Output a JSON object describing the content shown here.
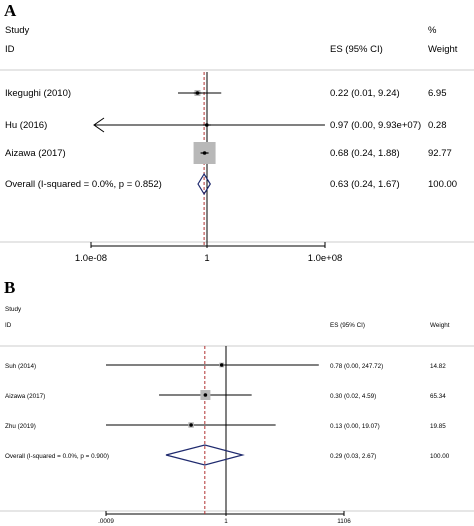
{
  "panels": [
    {
      "letter": "A",
      "header": {
        "study": "Study",
        "id": "ID",
        "es": "ES (95% CI)",
        "pct": "%",
        "weight": "Weight"
      },
      "rows": [
        {
          "study": "Ikegughi (2010)",
          "es_text": "0.22 (0.01, 9.24)",
          "weight_text": "6.95"
        },
        {
          "study": "Hu (2016)",
          "es_text": "0.97 (0.00, 9.93e+07)",
          "weight_text": "0.28"
        },
        {
          "study": "Aizawa (2017)",
          "es_text": "0.68 (0.24, 1.88)",
          "weight_text": "92.77"
        },
        {
          "study": "Overall  (I-squared = 0.0%, p = 0.852)",
          "es_text": "0.63 (0.24, 1.67)",
          "weight_text": "100.00"
        }
      ],
      "ticks": [
        "1.0e-08",
        "1",
        "1.0e+08"
      ]
    },
    {
      "letter": "B",
      "header": {
        "study": "Study",
        "id": "ID",
        "es": "ES (95% CI)",
        "pct": "",
        "weight": "Weight"
      },
      "rows": [
        {
          "study": "Suh (2014)",
          "es_text": "0.78 (0.00, 247.72)",
          "weight_text": "14.82"
        },
        {
          "study": "Aizawa (2017)",
          "es_text": "0.30 (0.02, 4.59)",
          "weight_text": "65.34"
        },
        {
          "study": "Zhu (2019)",
          "es_text": "0.13 (0.00, 19.07)",
          "weight_text": "19.85"
        },
        {
          "study": "Overall  (I-squared = 0.0%, p = 0.900)",
          "es_text": "0.29 (0.03, 2.67)",
          "weight_text": "100.00"
        }
      ],
      "ticks": [
        ".0009",
        "1",
        "1106"
      ]
    }
  ],
  "chart_data": [
    {
      "type": "forest",
      "xscale": "log",
      "xlim": [
        1e-10,
        10000000000.0
      ],
      "null_line": 1,
      "reference_line": 0.63,
      "xticks": [
        1e-08,
        1,
        100000000.0
      ],
      "studies": [
        {
          "name": "Ikegughi (2010)",
          "es": 0.22,
          "lower": 0.01,
          "upper": 9.24,
          "weight": 6.95
        },
        {
          "name": "Hu (2016)",
          "es": 0.97,
          "lower": 0.0,
          "upper": 99300000.0,
          "weight": 0.28
        },
        {
          "name": "Aizawa (2017)",
          "es": 0.68,
          "lower": 0.24,
          "upper": 1.88,
          "weight": 92.77
        }
      ],
      "overall": {
        "es": 0.63,
        "lower": 0.24,
        "upper": 1.67,
        "weight": 100.0
      }
    },
    {
      "type": "forest",
      "xscale": "log",
      "xlim": [
        0.0009,
        1106
      ],
      "null_line": 1,
      "reference_line": 0.29,
      "xticks": [
        0.0009,
        1,
        1106
      ],
      "studies": [
        {
          "name": "Suh (2014)",
          "es": 0.78,
          "lower": 0.0,
          "upper": 247.72,
          "weight": 14.82
        },
        {
          "name": "Aizawa (2017)",
          "es": 0.3,
          "lower": 0.02,
          "upper": 4.59,
          "weight": 65.34
        },
        {
          "name": "Zhu (2019)",
          "es": 0.13,
          "lower": 0.0,
          "upper": 19.07,
          "weight": 19.85
        }
      ],
      "overall": {
        "es": 0.29,
        "lower": 0.03,
        "upper": 2.67,
        "weight": 100.0
      }
    }
  ]
}
